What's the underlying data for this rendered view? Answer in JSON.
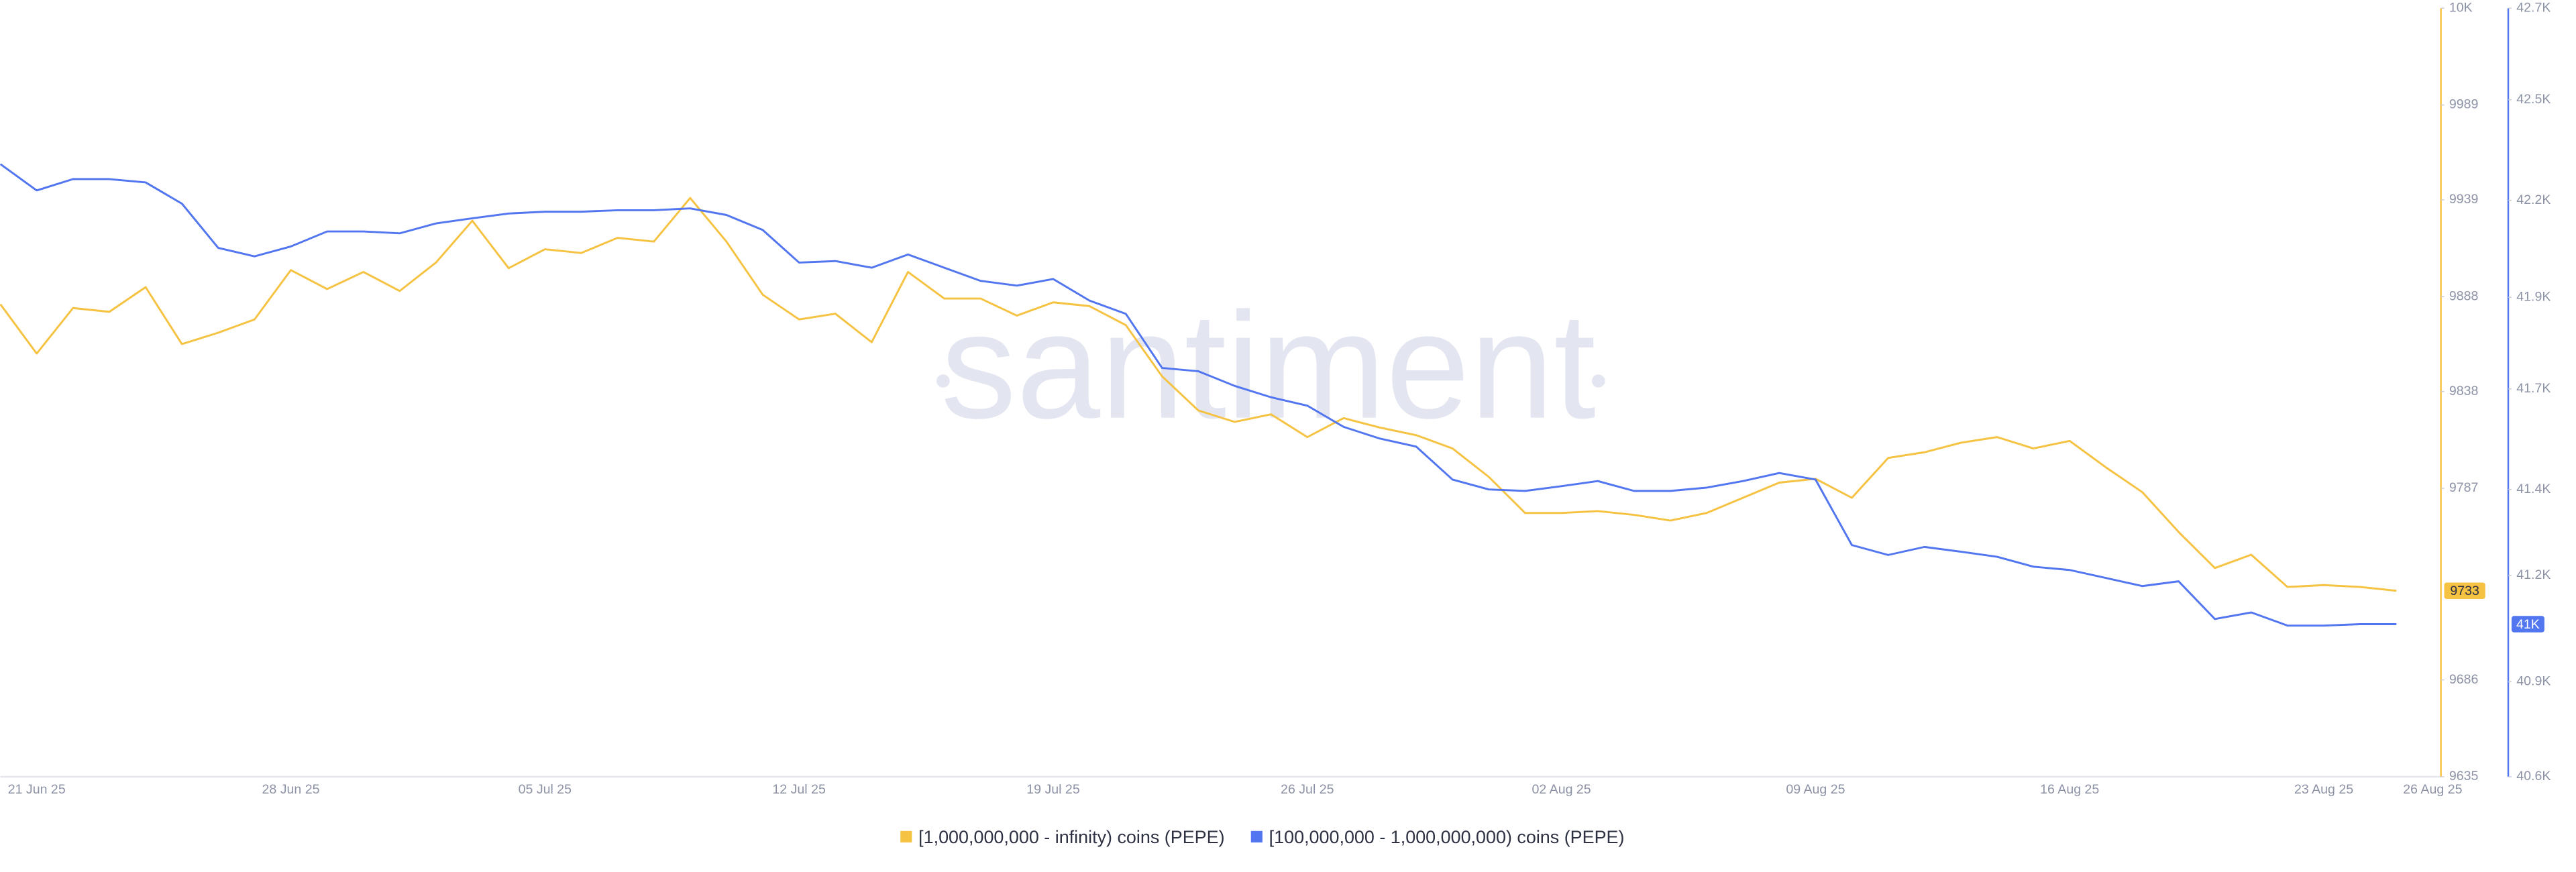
{
  "chart_data": {
    "type": "line",
    "watermark": "santiment",
    "categories": [
      null,
      "21 Jun 25",
      null,
      null,
      null,
      null,
      null,
      null,
      "28 Jun 25",
      null,
      null,
      null,
      null,
      null,
      null,
      "05 Jul 25",
      null,
      null,
      null,
      null,
      null,
      null,
      "12 Jul 25",
      null,
      null,
      null,
      null,
      null,
      null,
      "19 Jul 25",
      null,
      null,
      null,
      null,
      null,
      null,
      "26 Jul 25",
      null,
      null,
      null,
      null,
      null,
      null,
      "02 Aug 25",
      null,
      null,
      null,
      null,
      null,
      null,
      "09 Aug 25",
      null,
      null,
      null,
      null,
      null,
      null,
      "16 Aug 25",
      null,
      null,
      null,
      null,
      null,
      null,
      "23 Aug 25",
      null,
      null,
      "26 Aug 25"
    ],
    "series": [
      {
        "name": "[1,000,000,000 - infinity) coins (PEPE)",
        "color": "#f5c242",
        "axis": "y",
        "values": [
          9884,
          9858,
          9882,
          9880,
          9893,
          9863,
          9869,
          9876,
          9902,
          9892,
          9901,
          9891,
          9906,
          9928,
          9903,
          9913,
          9911,
          9919,
          9917,
          9940,
          9917,
          9889,
          9876,
          9879,
          9864,
          9901,
          9887,
          9887,
          9878,
          9885,
          9883,
          9873,
          9846,
          9828,
          9822,
          9826,
          9814,
          9824,
          9819,
          9815,
          9808,
          9793,
          9774,
          9774,
          9775,
          9773,
          9770,
          9774,
          9782,
          9790,
          9792,
          9782,
          9803,
          9806,
          9811,
          9814,
          9808,
          9812,
          9798,
          9785,
          9764,
          9745,
          9752,
          9735,
          9736,
          9735,
          9733,
          null
        ],
        "value_labels": [
          null,
          null,
          null,
          null,
          null,
          null,
          null,
          null,
          null,
          null,
          null,
          null,
          null,
          null,
          null,
          null,
          null,
          null,
          null,
          null,
          null,
          null,
          null,
          null,
          null,
          null,
          null,
          null,
          null,
          null,
          null,
          null,
          null,
          null,
          null,
          null,
          null,
          null,
          null,
          null,
          null,
          null,
          null,
          null,
          null,
          null,
          null,
          null,
          null,
          null,
          null,
          null,
          null,
          null,
          null,
          null,
          null,
          null,
          null,
          null,
          null,
          null,
          null,
          null,
          null,
          null,
          "9733",
          null
        ]
      },
      {
        "name": "[100,000,000 - 1,000,000,000) coins (PEPE)",
        "color": "#5275f0",
        "axis": "y2",
        "values": [
          42274,
          42202,
          42233,
          42233,
          42224,
          42166,
          42045,
          42022,
          42049,
          42090,
          42090,
          42085,
          42112,
          42126,
          42139,
          42144,
          42144,
          42148,
          42148,
          42153,
          42135,
          42094,
          42005,
          42009,
          41991,
          42027,
          41991,
          41955,
          41942,
          41960,
          41901,
          41865,
          41717,
          41708,
          41668,
          41637,
          41614,
          41556,
          41524,
          41502,
          41412,
          41385,
          41381,
          41394,
          41408,
          41381,
          41381,
          41390,
          41408,
          41430,
          41412,
          41233,
          41206,
          41228,
          41215,
          41201,
          41174,
          41165,
          41143,
          41121,
          41134,
          41031,
          41049,
          41013,
          41013,
          41017,
          41017,
          null
        ],
        "value_labels": [
          null,
          null,
          null,
          null,
          null,
          null,
          null,
          null,
          null,
          null,
          null,
          null,
          null,
          null,
          null,
          null,
          null,
          null,
          null,
          null,
          null,
          null,
          null,
          null,
          null,
          null,
          null,
          null,
          null,
          null,
          null,
          null,
          null,
          null,
          null,
          null,
          null,
          null,
          null,
          null,
          null,
          null,
          null,
          null,
          null,
          null,
          null,
          null,
          null,
          null,
          null,
          null,
          null,
          null,
          null,
          null,
          null,
          null,
          null,
          null,
          null,
          null,
          null,
          null,
          null,
          null,
          "41K",
          null
        ]
      }
    ],
    "ylim": [
      9635,
      10040
    ],
    "yticks": [
      9635,
      9686,
      9787,
      9838,
      9888,
      9939,
      9989,
      {
        "value": 10040,
        "label": "10K"
      }
    ],
    "y2lim": [
      40600,
      42700
    ],
    "y2ticks": [
      {
        "value": 40600,
        "label": "40.6K"
      },
      {
        "value": 40860,
        "label": "40.9K"
      },
      {
        "value": 41150,
        "label": "41.2K"
      },
      {
        "value": 41385,
        "label": "41.4K"
      },
      {
        "value": 41660,
        "label": "41.7K"
      },
      {
        "value": 41910,
        "label": "41.9K"
      },
      {
        "value": 42175,
        "label": "42.2K"
      },
      {
        "value": 42450,
        "label": "42.5K"
      },
      {
        "value": 42700,
        "label": "42.7K"
      }
    ]
  }
}
